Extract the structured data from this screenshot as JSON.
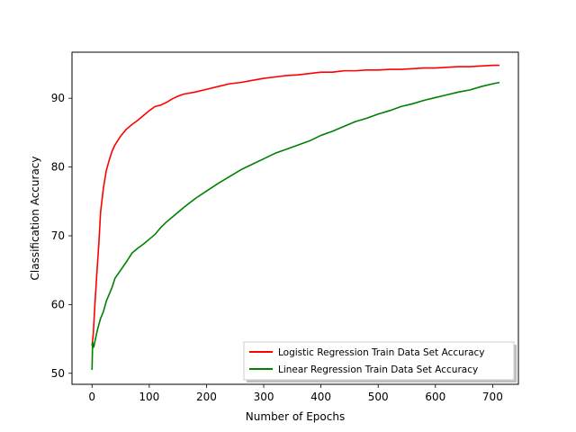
{
  "chart_data": {
    "type": "line",
    "title": "",
    "xlabel": "Number of Epochs",
    "ylabel": "Classification Accuracy",
    "xlim": [
      -35,
      745
    ],
    "ylim": [
      48.4,
      96.7
    ],
    "xticks": [
      0,
      100,
      200,
      300,
      400,
      500,
      600,
      700
    ],
    "yticks": [
      50,
      60,
      70,
      80,
      90
    ],
    "grid": false,
    "legend_position": "lower-right",
    "series": [
      {
        "name": "Logistic Regression Train Data Set Accuracy",
        "color": "#ff0000",
        "x": [
          0,
          2,
          5,
          8,
          12,
          15,
          20,
          25,
          30,
          35,
          40,
          50,
          60,
          70,
          80,
          90,
          100,
          110,
          120,
          130,
          140,
          150,
          160,
          180,
          200,
          220,
          240,
          260,
          280,
          300,
          320,
          340,
          360,
          380,
          400,
          420,
          440,
          460,
          480,
          500,
          520,
          540,
          560,
          580,
          600,
          620,
          640,
          660,
          680,
          700,
          712
        ],
        "y": [
          54.0,
          55.5,
          60.0,
          64.0,
          69.0,
          73.5,
          77.0,
          79.5,
          81.0,
          82.3,
          83.2,
          84.5,
          85.5,
          86.2,
          86.8,
          87.5,
          88.2,
          88.8,
          89.0,
          89.4,
          89.9,
          90.3,
          90.6,
          90.9,
          91.3,
          91.7,
          92.1,
          92.3,
          92.6,
          92.9,
          93.1,
          93.3,
          93.4,
          93.6,
          93.8,
          93.8,
          94.0,
          94.0,
          94.1,
          94.1,
          94.2,
          94.2,
          94.3,
          94.4,
          94.4,
          94.5,
          94.6,
          94.6,
          94.7,
          94.8,
          94.8
        ]
      },
      {
        "name": "Linear Regression Train Data Set Accuracy",
        "color": "#008000",
        "x": [
          0,
          1,
          3,
          6,
          10,
          15,
          20,
          25,
          30,
          35,
          40,
          50,
          60,
          70,
          80,
          90,
          100,
          110,
          120,
          130,
          140,
          150,
          160,
          180,
          200,
          220,
          240,
          260,
          280,
          300,
          320,
          340,
          360,
          380,
          400,
          420,
          440,
          460,
          480,
          500,
          520,
          540,
          560,
          580,
          600,
          620,
          640,
          660,
          680,
          700,
          712
        ],
        "y": [
          50.5,
          54.5,
          53.8,
          55.0,
          56.5,
          58.0,
          59.0,
          60.5,
          61.5,
          62.5,
          63.8,
          65.0,
          66.2,
          67.5,
          68.2,
          68.8,
          69.5,
          70.2,
          71.2,
          72.0,
          72.7,
          73.4,
          74.1,
          75.4,
          76.5,
          77.6,
          78.6,
          79.6,
          80.4,
          81.2,
          82.0,
          82.6,
          83.2,
          83.8,
          84.6,
          85.2,
          85.9,
          86.6,
          87.1,
          87.7,
          88.2,
          88.8,
          89.2,
          89.7,
          90.1,
          90.5,
          90.9,
          91.2,
          91.7,
          92.1,
          92.3
        ]
      }
    ]
  }
}
